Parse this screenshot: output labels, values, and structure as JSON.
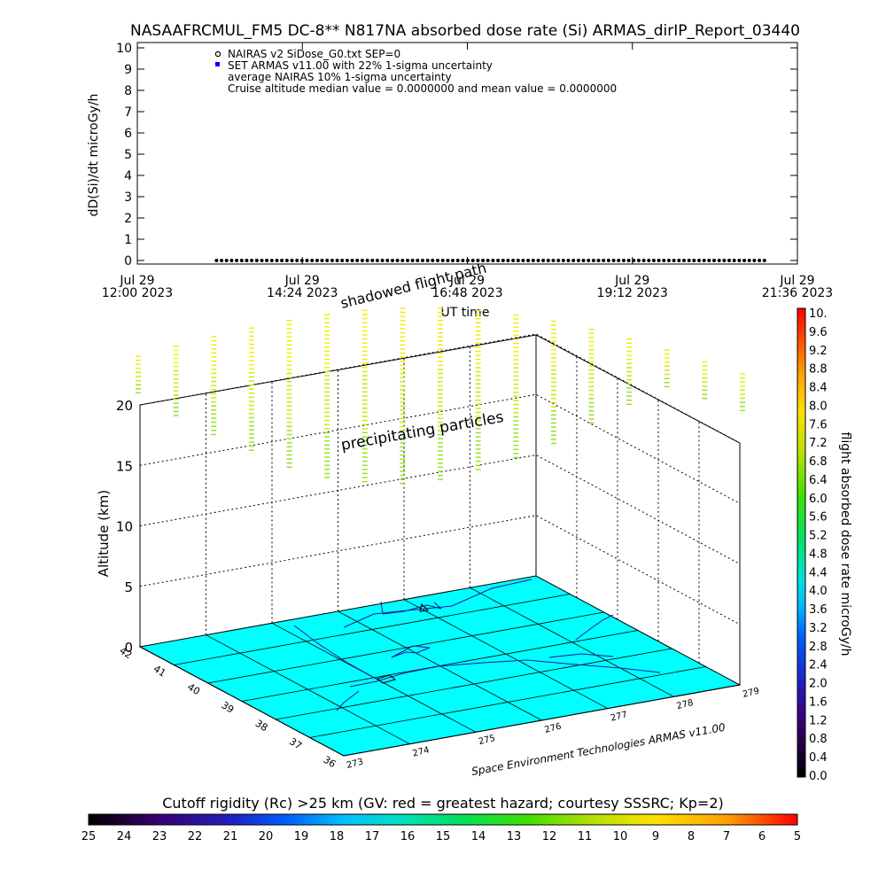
{
  "title": "NASAAFRCMUL_FM5 DC-8** N817NA absorbed dose rate (Si) ARMAS_dirIP_Report_03440",
  "chart_data": [
    {
      "type": "scatter",
      "ylabel": "dD(Si)/dt microGy/h",
      "xlabel": "UT time",
      "ylim": [
        0,
        10
      ],
      "yticks": [
        "0",
        "1",
        "2",
        "3",
        "4",
        "5",
        "6",
        "7",
        "8",
        "9",
        "10"
      ],
      "xticks": [
        {
          "line1": "Jul 29",
          "line2": "12:00 2023",
          "frac": 0.0
        },
        {
          "line1": "Jul 29",
          "line2": "14:24 2023",
          "frac": 0.25
        },
        {
          "line1": "Jul 29",
          "line2": "16:48 2023",
          "frac": 0.5
        },
        {
          "line1": "Jul 29",
          "line2": "19:12 2023",
          "frac": 0.75
        },
        {
          "line1": "Jul 29",
          "line2": "21:36 2023",
          "frac": 1.0
        }
      ],
      "legend": [
        "NAIRAS v2 SiDose_G0.txt SEP=0",
        "SET ARMAS v11.00 with 22% 1-sigma uncertainty",
        "average NAIRAS 10% 1-sigma uncertainty",
        "Cruise altitude median value = 0.0000000 and mean value = 0.0000000"
      ],
      "series": [
        {
          "name": "SET ARMAS v11.00",
          "x_start_frac": 0.12,
          "x_end_frac": 0.95,
          "count": 110,
          "value": 0.0
        }
      ]
    },
    {
      "type": "3d-surface",
      "zlabel": "Altitude (km)",
      "zticks": [
        "0",
        "5",
        "10",
        "15",
        "20"
      ],
      "lat_ticks": [
        "42",
        "41",
        "40",
        "39",
        "38",
        "37",
        "36"
      ],
      "lon_ticks": [
        "273",
        "274",
        "275",
        "276",
        "277",
        "278",
        "279"
      ],
      "annotations": [
        "shadowed flight path",
        "precipitating particles"
      ],
      "credit": "Space Environment Technologies ARMAS v11.00",
      "surface_color": "#00ffff"
    }
  ],
  "dose_colorbar": {
    "label": "flight absorbed dose rate microGy/h",
    "ticks": [
      "0.0",
      "0.4",
      "0.8",
      "1.2",
      "1.6",
      "2.0",
      "2.4",
      "2.8",
      "3.2",
      "3.6",
      "4.0",
      "4.4",
      "4.8",
      "5.2",
      "5.6",
      "6.0",
      "6.4",
      "6.8",
      "7.2",
      "7.6",
      "8.0",
      "8.4",
      "8.8",
      "9.2",
      "9.6",
      "10."
    ]
  },
  "rigidity_colorbar": {
    "label": "Cutoff rigidity (Rc) >25 km (GV: red = greatest hazard; courtesy SSSRC; Kp=2)",
    "ticks": [
      "25",
      "24",
      "23",
      "22",
      "21",
      "20",
      "19",
      "18",
      "17",
      "16",
      "15",
      "14",
      "13",
      "12",
      "11",
      "10",
      "9",
      "8",
      "7",
      "6",
      "5"
    ]
  }
}
